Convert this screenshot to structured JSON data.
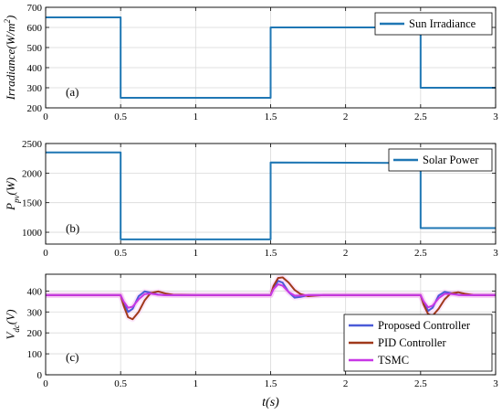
{
  "chart_data": [
    {
      "type": "line",
      "ylabel": "Irradiance(W/m²)",
      "panel_label": "(a)",
      "xlim": [
        0,
        3
      ],
      "ylim": [
        200,
        700
      ],
      "xticks": [
        "0",
        "0.5",
        "1",
        "1.5",
        "2",
        "2.5",
        "3"
      ],
      "yticks": [
        "200",
        "300",
        "400",
        "500",
        "600",
        "700"
      ],
      "grid": true,
      "legend_position": "top-right",
      "series": [
        {
          "name": "Sun Irradiance",
          "color": "#1f77b4",
          "x": [
            0,
            0.5,
            0.5,
            1.5,
            1.5,
            2.5,
            2.5,
            3
          ],
          "y": [
            650,
            650,
            250,
            250,
            600,
            600,
            300,
            300
          ]
        }
      ]
    },
    {
      "type": "line",
      "ylabel": "Ppv(W)",
      "panel_label": "(b)",
      "xlim": [
        0,
        3
      ],
      "ylim": [
        800,
        2500
      ],
      "xticks": [
        "0",
        "0.5",
        "1",
        "1.5",
        "2",
        "2.5",
        "3"
      ],
      "yticks": [
        "1000",
        "1500",
        "2000",
        "2500"
      ],
      "grid": true,
      "legend_position": "top-right",
      "series": [
        {
          "name": "Solar Power",
          "color": "#1f77b4",
          "x": [
            0,
            0.5,
            0.5,
            1.5,
            1.5,
            2.5,
            2.5,
            3
          ],
          "y": [
            2350,
            2350,
            880,
            880,
            2180,
            2170,
            1070,
            1070
          ]
        }
      ]
    },
    {
      "type": "line",
      "ylabel": "Vdc(V)",
      "xlabel": "t(s)",
      "panel_label": "(c)",
      "xlim": [
        0,
        3
      ],
      "ylim": [
        0,
        480
      ],
      "xticks": [
        "0",
        "0.5",
        "1",
        "1.5",
        "2",
        "2.5",
        "3"
      ],
      "yticks": [
        "0",
        "100",
        "200",
        "300",
        "400"
      ],
      "grid": true,
      "legend_position": "bottom-right",
      "series": [
        {
          "name": "Proposed Controller",
          "color": "#4a5bd8",
          "x": [
            0,
            0.5,
            0.52,
            0.55,
            0.58,
            0.62,
            0.66,
            0.7,
            0.75,
            0.8,
            1.0,
            1.5,
            1.52,
            1.55,
            1.58,
            1.62,
            1.66,
            1.7,
            1.75,
            1.8,
            2.0,
            2.5,
            2.52,
            2.55,
            2.58,
            2.62,
            2.66,
            2.7,
            2.75,
            2.8,
            3.0
          ],
          "y": [
            380,
            380,
            345,
            300,
            315,
            375,
            398,
            392,
            383,
            380,
            380,
            380,
            415,
            448,
            440,
            395,
            368,
            372,
            380,
            380,
            380,
            380,
            345,
            305,
            320,
            378,
            396,
            390,
            382,
            380,
            380
          ]
        },
        {
          "name": "PID Controller",
          "color": "#a0391b",
          "x": [
            0,
            0.5,
            0.52,
            0.55,
            0.58,
            0.62,
            0.66,
            0.7,
            0.75,
            0.8,
            0.85,
            1.0,
            1.5,
            1.52,
            1.55,
            1.58,
            1.62,
            1.66,
            1.7,
            1.75,
            1.8,
            1.85,
            2.0,
            2.5,
            2.52,
            2.55,
            2.58,
            2.62,
            2.66,
            2.7,
            2.75,
            2.8,
            2.85,
            3.0
          ],
          "y": [
            380,
            380,
            330,
            275,
            265,
            300,
            355,
            390,
            398,
            388,
            382,
            380,
            380,
            425,
            462,
            465,
            440,
            405,
            385,
            375,
            378,
            380,
            380,
            380,
            335,
            290,
            282,
            315,
            360,
            388,
            394,
            386,
            381,
            380
          ]
        },
        {
          "name": "TSMC",
          "color": "#c837e6",
          "x": [
            0,
            0.5,
            0.52,
            0.55,
            0.58,
            0.62,
            0.66,
            0.7,
            0.75,
            0.8,
            1.0,
            1.5,
            1.52,
            1.55,
            1.58,
            1.62,
            1.66,
            1.7,
            1.75,
            1.8,
            2.0,
            2.5,
            2.52,
            2.55,
            2.58,
            2.62,
            2.66,
            2.7,
            2.75,
            2.8,
            3.0
          ],
          "y": [
            380,
            380,
            350,
            320,
            325,
            360,
            385,
            388,
            382,
            380,
            380,
            380,
            410,
            432,
            425,
            395,
            378,
            378,
            380,
            380,
            380,
            380,
            350,
            322,
            330,
            365,
            386,
            386,
            381,
            380,
            380
          ]
        }
      ]
    }
  ]
}
